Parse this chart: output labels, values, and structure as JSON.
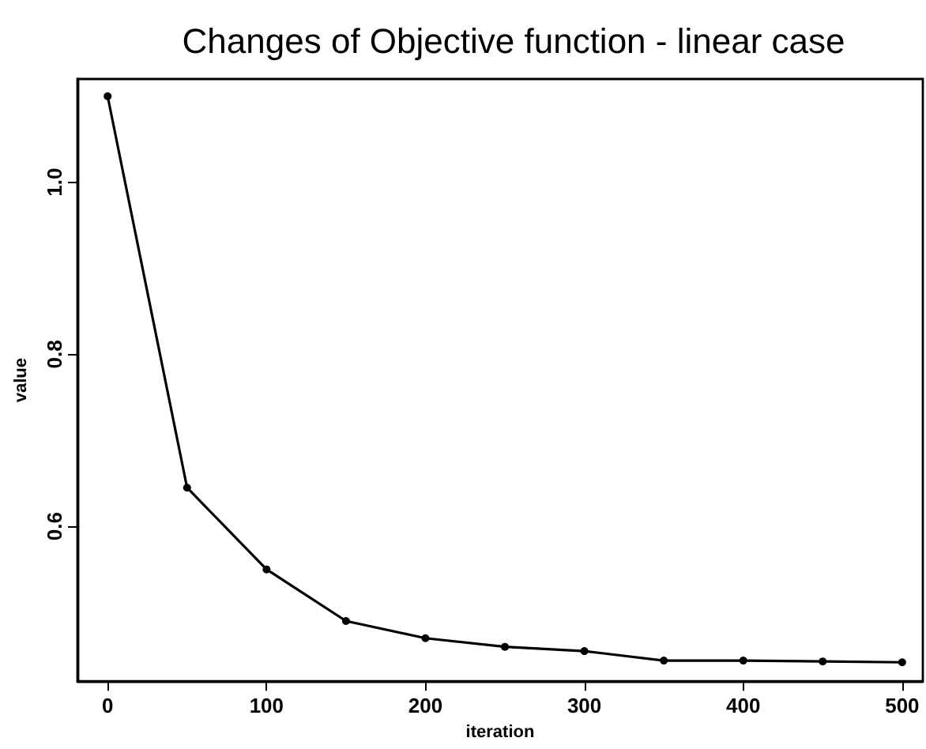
{
  "chart_data": {
    "type": "line",
    "title": "Changes of Objective function - linear case",
    "xlabel": "iteration",
    "ylabel": "value",
    "x": [
      0,
      50,
      100,
      150,
      200,
      250,
      300,
      350,
      400,
      450,
      500
    ],
    "series": [
      {
        "color": "#000000",
        "values": [
          1.1,
          0.645,
          0.55,
          0.49,
          0.47,
          0.46,
          0.455,
          0.444,
          0.444,
          0.443,
          0.442
        ]
      }
    ],
    "xlim": [
      -19,
      513
    ],
    "xticks": [
      0,
      100,
      200,
      300,
      400,
      500
    ],
    "ylim": [
      0.42,
      1.12
    ],
    "yticks": [
      0.6,
      0.8,
      {
        "value": 1,
        "label": "1.0"
      }
    ],
    "grid": false,
    "marker": "circle",
    "line_style": "solid"
  }
}
